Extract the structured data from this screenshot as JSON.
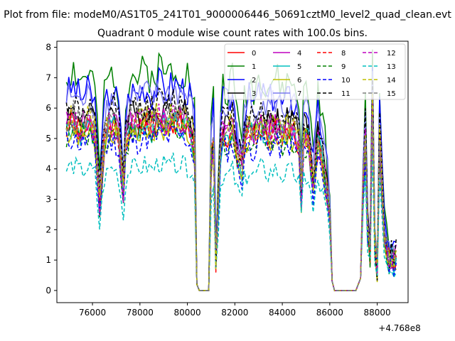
{
  "figure": {
    "suptitle": "Plot from file: modeM0/AS1T05_241T01_9000006446_50691cztM0_level2_quad_clean.evt"
  },
  "chart_data": {
    "type": "line",
    "title": "Quadrant 0 module wise count rates with 100.0s bins.",
    "xlabel": "",
    "ylabel": "",
    "x_offset_label": "+4.768e8",
    "xlim": [
      74500,
      89300
    ],
    "ylim": [
      -0.4,
      8.2
    ],
    "x_ticks": [
      76000,
      78000,
      80000,
      82000,
      84000,
      86000,
      88000
    ],
    "x_tick_labels": [
      "76000",
      "78000",
      "80000",
      "82000",
      "84000",
      "86000",
      "88000"
    ],
    "y_ticks": [
      0,
      1,
      2,
      3,
      4,
      5,
      6,
      7,
      8
    ],
    "y_tick_labels": [
      "0",
      "1",
      "2",
      "3",
      "4",
      "5",
      "6",
      "7",
      "8"
    ],
    "grid": false,
    "legend": {
      "placement": "top-right",
      "columns": 4
    },
    "bin_seconds": 100.0,
    "envelope": {
      "description_free_keys": true,
      "x": [
        74900,
        75200,
        75500,
        75800,
        76100,
        76300,
        76500,
        76700,
        76900,
        77100,
        77300,
        77400,
        77600,
        77900,
        78200,
        78500,
        78800,
        79100,
        79400,
        79700,
        80000,
        80200,
        80300,
        80400,
        80500,
        80700,
        80900,
        81000,
        81100,
        81200,
        81400,
        81500,
        81700,
        81900,
        82100,
        82300,
        82400,
        82600,
        82800,
        83100,
        83400,
        83700,
        84000,
        84300,
        84500,
        84700,
        84800,
        84900,
        85100,
        85300,
        85500,
        85700,
        85900,
        86000,
        86100,
        86200,
        86300,
        86500,
        86700,
        86900,
        87100,
        87300,
        87400,
        87500,
        87600,
        87700,
        87800,
        87900,
        88000,
        88100,
        88200,
        88300,
        88400,
        88500,
        88600,
        88700,
        88800
      ],
      "y": [
        5.3,
        5.5,
        5.2,
        5.4,
        5.1,
        2.8,
        4.9,
        5.3,
        5.4,
        5.0,
        3.2,
        4.8,
        5.4,
        5.3,
        5.5,
        5.3,
        5.6,
        5.4,
        5.6,
        5.5,
        5.4,
        5.0,
        4.6,
        0.2,
        0.0,
        0.0,
        0.0,
        4.2,
        4.8,
        1.0,
        4.6,
        5.1,
        5.0,
        5.3,
        4.4,
        4.0,
        4.8,
        5.2,
        5.0,
        5.4,
        5.1,
        5.3,
        5.0,
        5.2,
        5.1,
        4.8,
        3.0,
        5.0,
        4.9,
        3.4,
        4.8,
        4.2,
        3.2,
        2.2,
        0.3,
        0.0,
        0.0,
        0.0,
        0.0,
        0.0,
        0.0,
        0.4,
        3.3,
        5.0,
        2.0,
        1.2,
        5.8,
        1.5,
        0.7,
        5.0,
        3.4,
        1.8,
        1.3,
        1.0,
        1.1,
        0.9,
        1.1
      ]
    },
    "series": [
      {
        "name": "0",
        "color": "#ff0000",
        "style": "solid",
        "scale": 1.0,
        "seed": 1
      },
      {
        "name": "1",
        "color": "#008000",
        "style": "solid",
        "scale": 1.32,
        "seed": 2
      },
      {
        "name": "2",
        "color": "#0000ff",
        "style": "solid",
        "scale": 1.22,
        "seed": 3
      },
      {
        "name": "3",
        "color": "#000000",
        "style": "solid",
        "scale": 1.08,
        "seed": 4
      },
      {
        "name": "4",
        "color": "#bf00bf",
        "style": "solid",
        "scale": 1.04,
        "seed": 5
      },
      {
        "name": "5",
        "color": "#00bfbf",
        "style": "solid",
        "scale": 1.0,
        "seed": 6
      },
      {
        "name": "6",
        "color": "#bfbf00",
        "style": "solid",
        "scale": 0.97,
        "seed": 7
      },
      {
        "name": "7",
        "color": "#7b7bf0",
        "style": "solid",
        "scale": 1.18,
        "seed": 8
      },
      {
        "name": "8",
        "color": "#ff0000",
        "style": "dashed",
        "scale": 1.0,
        "seed": 9
      },
      {
        "name": "9",
        "color": "#008000",
        "style": "dashed",
        "scale": 0.96,
        "seed": 10
      },
      {
        "name": "10",
        "color": "#0000ff",
        "style": "dashed",
        "scale": 0.92,
        "seed": 11
      },
      {
        "name": "11",
        "color": "#000000",
        "style": "dashed",
        "scale": 1.12,
        "seed": 12
      },
      {
        "name": "12",
        "color": "#bf00bf",
        "style": "dashed",
        "scale": 1.02,
        "seed": 13
      },
      {
        "name": "13",
        "color": "#00bfbf",
        "style": "dashed",
        "scale": 0.75,
        "seed": 14
      },
      {
        "name": "14",
        "color": "#bfbf00",
        "style": "dashed",
        "scale": 1.04,
        "seed": 15
      },
      {
        "name": "15",
        "color": "#808080",
        "style": "dashed",
        "scale": 1.06,
        "seed": 16
      }
    ]
  }
}
